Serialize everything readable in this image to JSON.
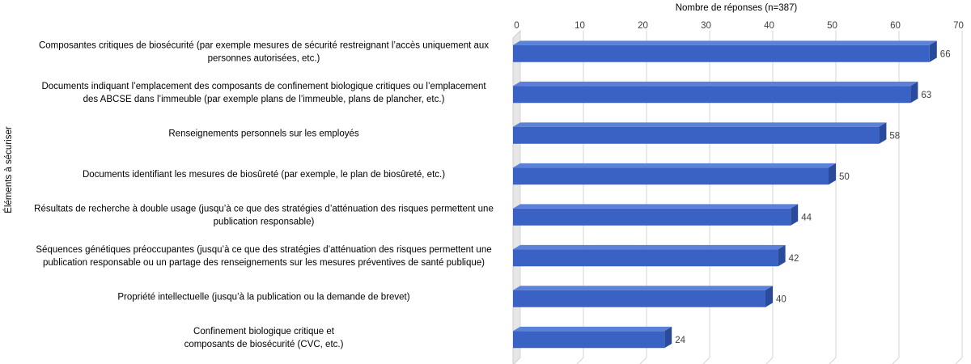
{
  "chart_data": {
    "type": "bar",
    "orientation": "horizontal",
    "xlabel": "Nombre de réponses (n=387)",
    "ylabel": "Éléments à sécuriser",
    "xlim": [
      0,
      70
    ],
    "xticks": [
      "0",
      "10",
      "20",
      "30",
      "40",
      "50",
      "60",
      "70"
    ],
    "grid": true,
    "categories": [
      [
        "Composantes critiques de biosécurité (par exemple mesures de sécurité restreignant l’accès uniquement aux",
        "personnes autorisées, etc.)"
      ],
      [
        "Documents indiquant l’emplacement des composants de confinement biologique critiques ou l’emplacement",
        "des ABCSE dans l’immeuble (par exemple plans de l’immeuble, plans de plancher, etc.)"
      ],
      [
        "Renseignements personnels sur les employés"
      ],
      [
        "Documents identifiant les mesures de biosûreté (par exemple, le plan de biosûreté, etc.)"
      ],
      [
        "Résultats de recherche à double usage (jusqu’à ce que des stratégies d’atténuation des risques permettent une",
        "publication responsable)"
      ],
      [
        "Séquences génétiques préoccupantes (jusqu’à ce que des stratégies d’atténuation des risques permettent une",
        "publication responsable ou un partage des renseignements sur les mesures préventives de santé publique)"
      ],
      [
        "Propriété intellectuelle (jusqu’à la publication ou la demande de brevet)"
      ],
      [
        "Confinement biologique critique et",
        "composants de biosécurité (CVC, etc.)"
      ]
    ],
    "values": [
      66,
      63,
      58,
      50,
      44,
      42,
      40,
      24
    ],
    "data_labels": [
      "66",
      "63",
      "58",
      "50",
      "44",
      "42",
      "40",
      "24"
    ],
    "colors": {
      "bar": "#3a62c4",
      "bar_top": "#5b82d8",
      "bar_side": "#2a4a9c",
      "grid": "#d4d4d4",
      "wall": "#cfcfcf",
      "text": "#000000",
      "label": "#404040"
    }
  }
}
